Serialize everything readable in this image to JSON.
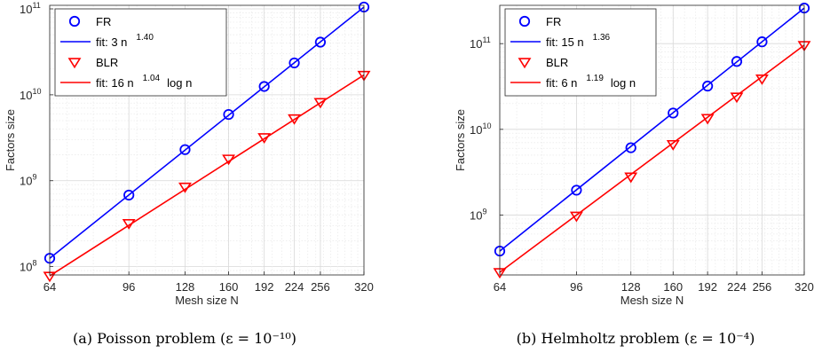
{
  "chart_data": [
    {
      "type": "line",
      "caption": "(a) Poisson problem (ε = 10⁻¹⁰)",
      "xlabel": "Mesh size N",
      "ylabel": "Factors size",
      "xscale": "log",
      "yscale": "log",
      "xlim": [
        64,
        320
      ],
      "ylim": [
        80000000,
        110000000000
      ],
      "xticks": [
        64,
        96,
        128,
        160,
        192,
        224,
        256,
        320
      ],
      "yticks": [
        {
          "value": 100000000,
          "base": "10",
          "exp": "8"
        },
        {
          "value": 1000000000,
          "base": "10",
          "exp": "9"
        },
        {
          "value": 10000000000,
          "base": "10",
          "exp": "10"
        },
        {
          "value": 100000000000,
          "base": "10",
          "exp": "11"
        }
      ],
      "grid": true,
      "legend_position": "top-left",
      "series": [
        {
          "name": "FR",
          "kind": "marker",
          "marker": "circle",
          "color": "#0000ff",
          "x": [
            64,
            96,
            128,
            160,
            192,
            224,
            256,
            320
          ],
          "y": [
            125000000,
            680000000,
            2300000000,
            5900000000,
            12500000000,
            23500000000,
            41000000000,
            105000000000
          ]
        },
        {
          "name": "fit: 3 n",
          "sup": "1.40",
          "tail": "",
          "kind": "line",
          "color": "#0000ff",
          "x": [
            64,
            320
          ],
          "y": [
            125000000,
            105000000000
          ]
        },
        {
          "name": "BLR",
          "kind": "marker",
          "marker": "triangle-down",
          "color": "#ff0000",
          "x": [
            64,
            96,
            128,
            160,
            192,
            224,
            256,
            320
          ],
          "y": [
            78000000,
            320000000,
            850000000,
            1800000000,
            3200000000,
            5300000000,
            8200000000,
            17000000000
          ]
        },
        {
          "name": "fit: 16 n",
          "sup": "1.04",
          "tail": "log n",
          "kind": "line",
          "color": "#ff0000",
          "x": [
            64,
            320
          ],
          "y": [
            78000000,
            17000000000
          ]
        }
      ]
    },
    {
      "type": "line",
      "caption": "(b) Helmholtz problem (ε = 10⁻⁴)",
      "xlabel": "Mesh size N",
      "ylabel": "Factors size",
      "xscale": "log",
      "yscale": "log",
      "xlim": [
        64,
        320
      ],
      "ylim": [
        200000000,
        280000000000
      ],
      "xticks": [
        64,
        96,
        128,
        160,
        192,
        224,
        256,
        320
      ],
      "yticks": [
        {
          "value": 1000000000,
          "base": "10",
          "exp": "9"
        },
        {
          "value": 10000000000,
          "base": "10",
          "exp": "10"
        },
        {
          "value": 100000000000,
          "base": "10",
          "exp": "11"
        }
      ],
      "grid": true,
      "legend_position": "top-left",
      "series": [
        {
          "name": "FR",
          "kind": "marker",
          "marker": "circle",
          "color": "#0000ff",
          "x": [
            64,
            96,
            128,
            160,
            192,
            224,
            256,
            320
          ],
          "y": [
            380000000,
            1950000000,
            6100000000,
            15500000000,
            32000000000,
            62000000000,
            105000000000,
            260000000000
          ]
        },
        {
          "name": "fit: 15 n",
          "sup": "1.36",
          "tail": "",
          "kind": "line",
          "color": "#0000ff",
          "x": [
            64,
            320
          ],
          "y": [
            380000000,
            260000000000
          ]
        },
        {
          "name": "BLR",
          "kind": "marker",
          "marker": "triangle-down",
          "color": "#ff0000",
          "x": [
            64,
            96,
            128,
            160,
            192,
            224,
            256,
            320
          ],
          "y": [
            215000000,
            980000000,
            2800000000,
            6700000000,
            13500000000,
            24000000000,
            39000000000,
            96000000000
          ]
        },
        {
          "name": "fit: 6 n",
          "sup": "1.19",
          "tail": "log n",
          "kind": "line",
          "color": "#ff0000",
          "x": [
            64,
            320
          ],
          "y": [
            215000000,
            96000000000
          ]
        }
      ]
    }
  ]
}
